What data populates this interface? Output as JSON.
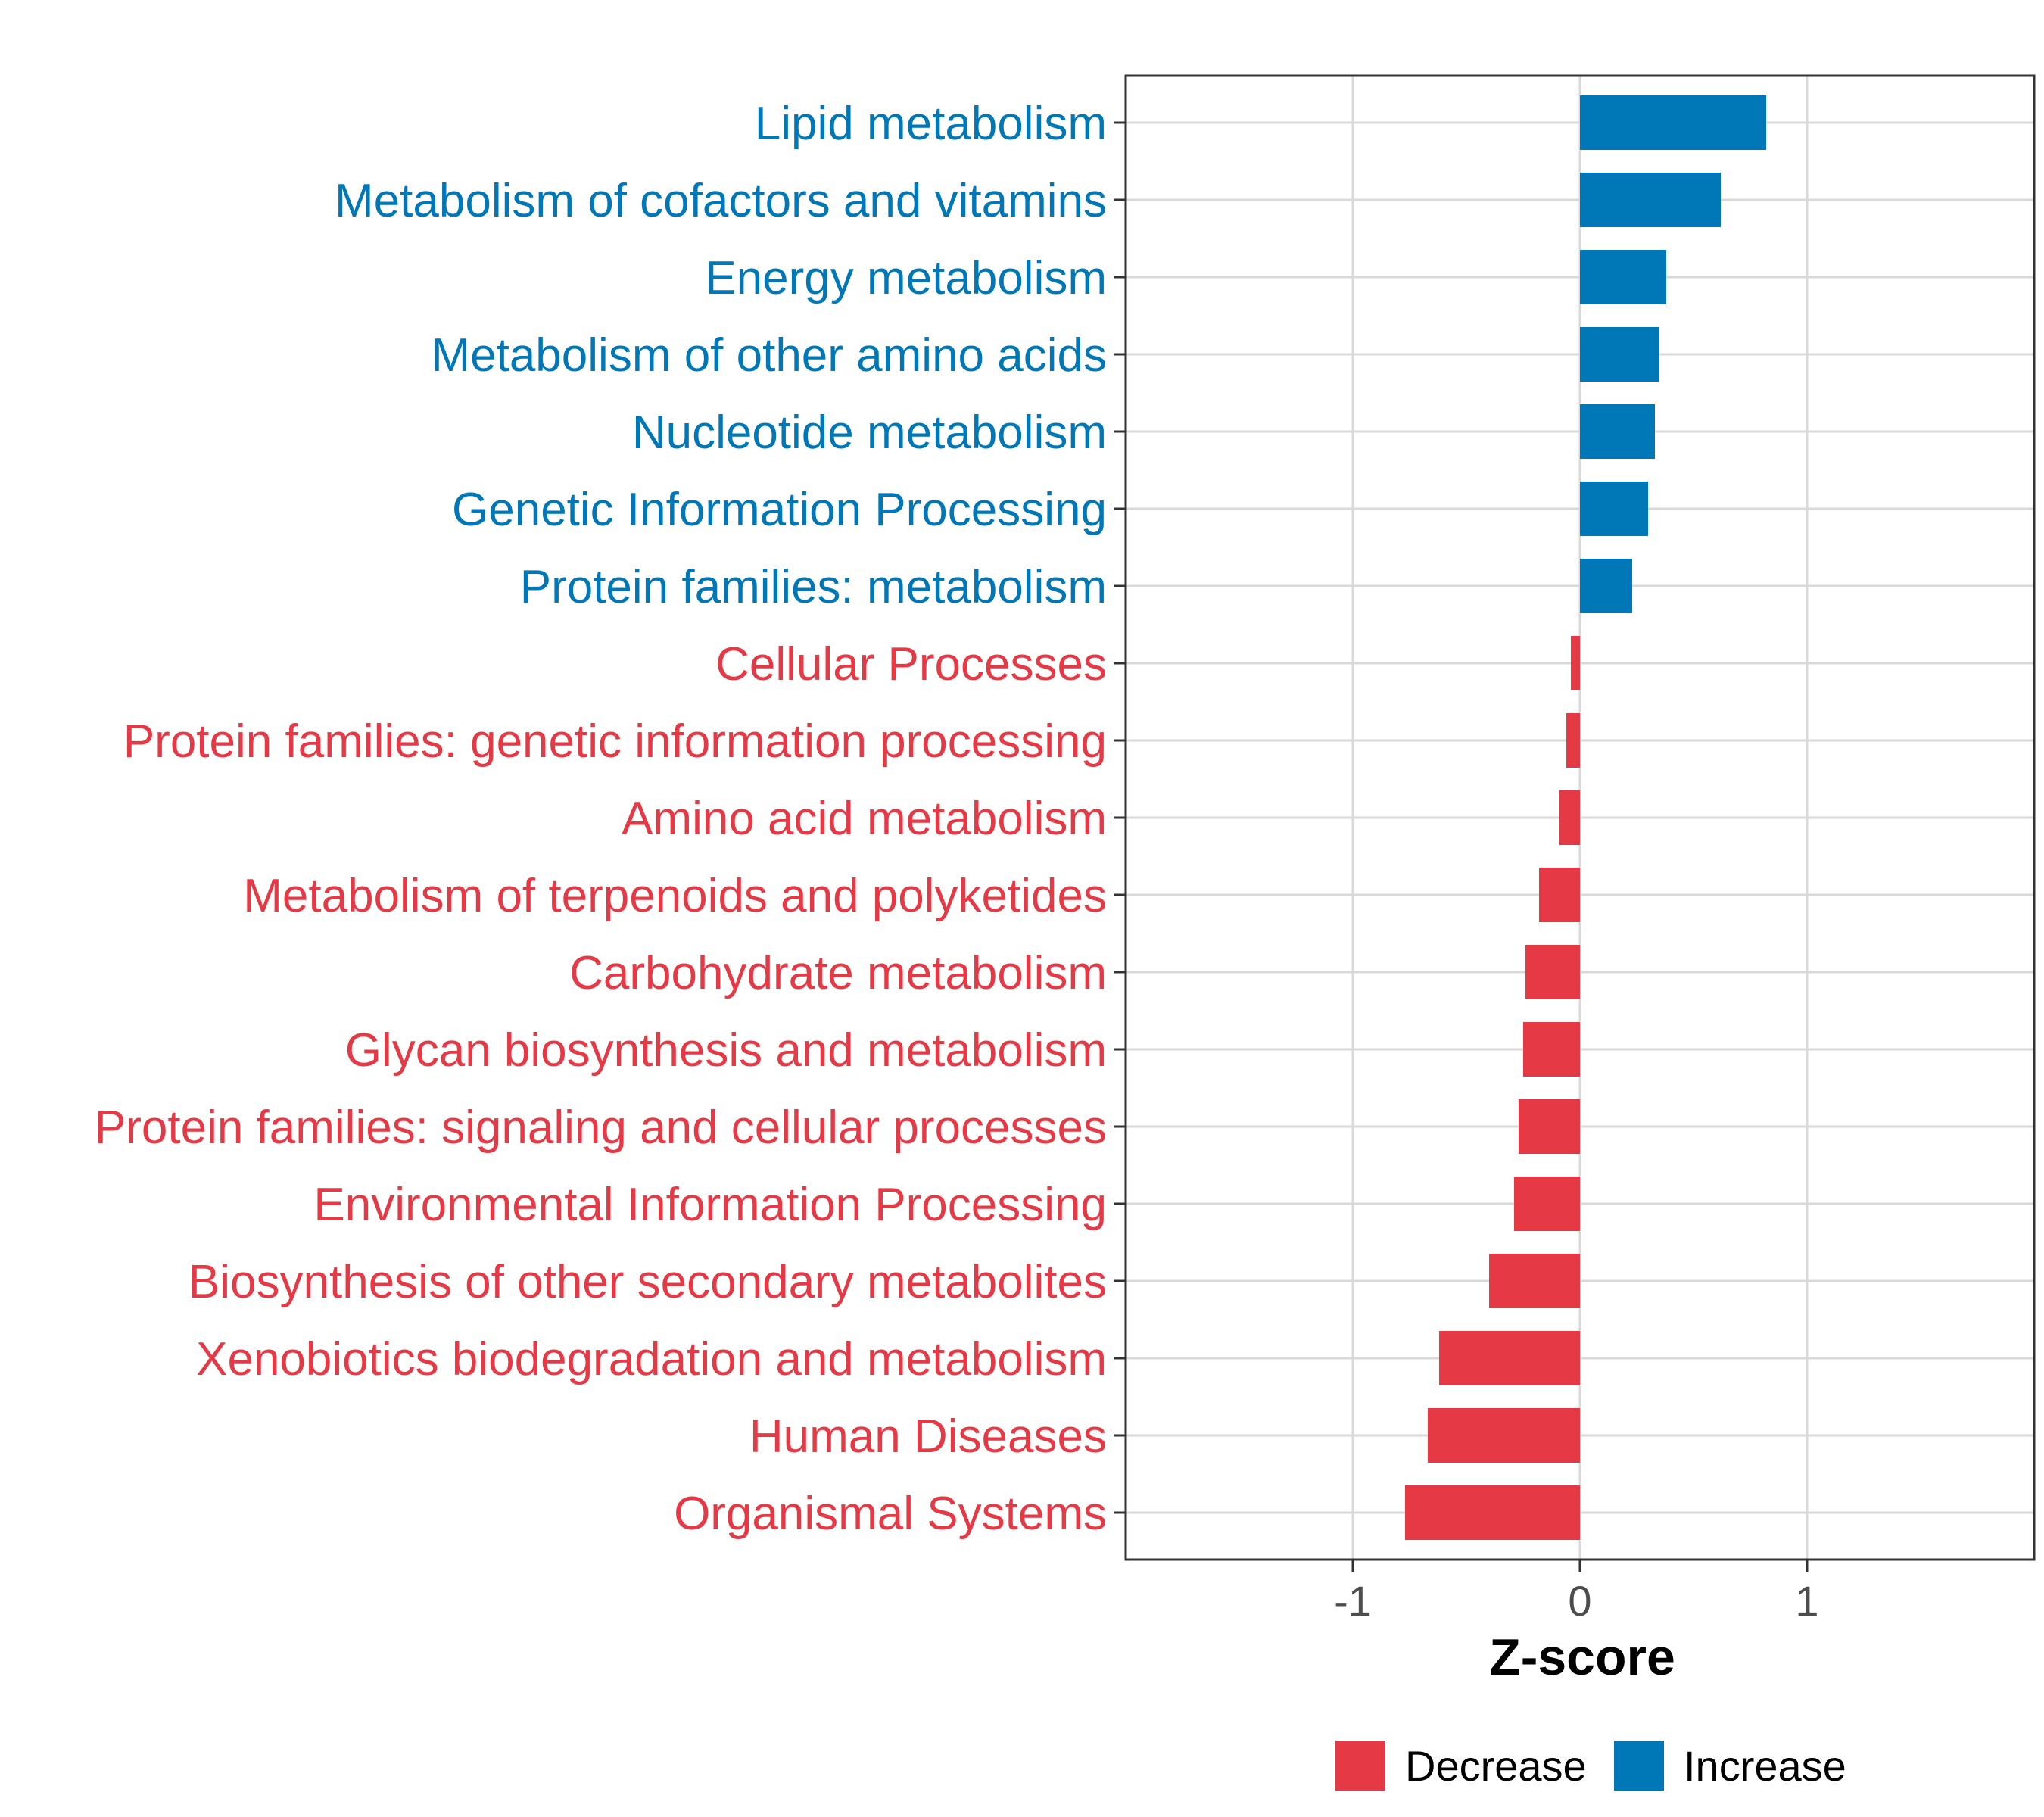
{
  "chart_data": {
    "type": "bar",
    "orientation": "horizontal",
    "title": "",
    "xlabel": "Z-score",
    "ylabel": "",
    "xlim": [
      -2.0,
      2.0
    ],
    "xticks": [
      "-1",
      "0",
      "1"
    ],
    "xtick_values": [
      -1,
      0,
      1
    ],
    "grid": true,
    "categories": [
      "Lipid metabolism",
      "Metabolism of cofactors and vitamins",
      "Energy metabolism",
      "Metabolism of other amino acids",
      "Nucleotide metabolism",
      "Genetic Information Processing",
      "Protein families: metabolism",
      "Cellular Processes",
      "Protein families: genetic information processing",
      "Amino acid metabolism",
      "Metabolism of terpenoids and polyketides",
      "Carbohydrate metabolism",
      "Glycan biosynthesis and metabolism",
      "Protein families: signaling and cellular processes",
      "Environmental Information Processing",
      "Biosynthesis of other secondary metabolites",
      "Xenobiotics biodegradation and metabolism",
      "Human Diseases",
      "Organismal Systems"
    ],
    "values": [
      0.82,
      0.62,
      0.38,
      0.35,
      0.33,
      0.3,
      0.23,
      -0.04,
      -0.06,
      -0.09,
      -0.18,
      -0.24,
      -0.25,
      -0.27,
      -0.29,
      -0.4,
      -0.62,
      -0.67,
      -0.77
    ],
    "group": [
      "Increase",
      "Increase",
      "Increase",
      "Increase",
      "Increase",
      "Increase",
      "Increase",
      "Decrease",
      "Decrease",
      "Decrease",
      "Decrease",
      "Decrease",
      "Decrease",
      "Decrease",
      "Decrease",
      "Decrease",
      "Decrease",
      "Decrease",
      "Decrease"
    ],
    "legend": {
      "position": "bottom",
      "entries": [
        {
          "label": "Decrease",
          "color": "#e63946"
        },
        {
          "label": "Increase",
          "color": "#0077b6"
        }
      ]
    },
    "colors": {
      "Increase": "#0077b6",
      "Decrease": "#e63946"
    }
  }
}
